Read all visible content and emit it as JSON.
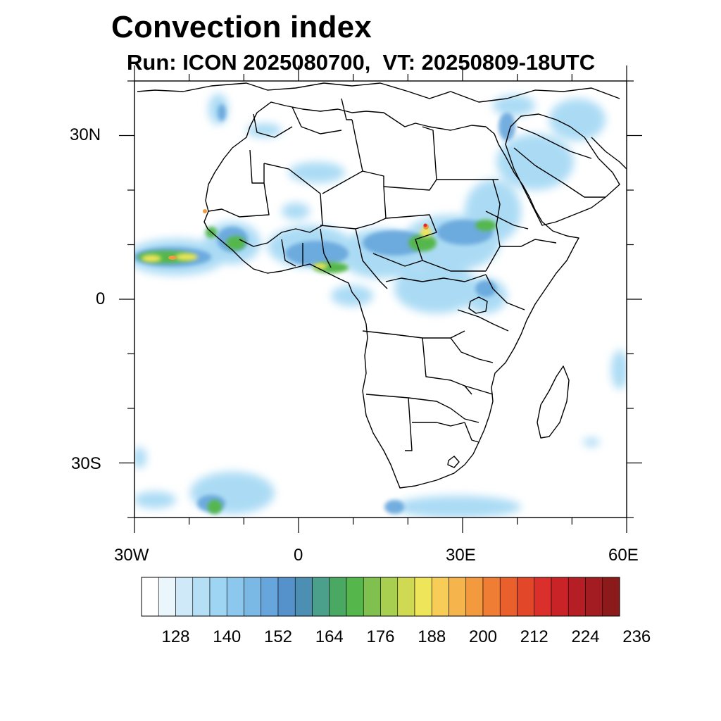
{
  "title": "Convection index",
  "subtitle": "Run: ICON 2025080700,  VT: 20250809-18UTC",
  "axes": {
    "lat_labels": [
      "30N",
      "0",
      "30S"
    ],
    "lon_labels": [
      "30W",
      "0",
      "30E",
      "60E"
    ],
    "lat_values": [
      30,
      0,
      -30
    ],
    "lon_values": [
      -30,
      0,
      30,
      60
    ],
    "lon_range": [
      -30,
      60
    ],
    "lat_range": [
      -40,
      40
    ]
  },
  "colorbar": {
    "labels": [
      "128",
      "140",
      "152",
      "164",
      "176",
      "188",
      "200",
      "212",
      "224",
      "236"
    ],
    "colors": [
      "#ffffff",
      "#eaf5fc",
      "#cfe9f8",
      "#b5dff5",
      "#9dd5f3",
      "#8cc8ee",
      "#7ab8e6",
      "#66a6dc",
      "#5592cc",
      "#4c8fb3",
      "#4aa08a",
      "#49a861",
      "#55b74b",
      "#7fc04e",
      "#a8cf50",
      "#cfda52",
      "#efe55a",
      "#f7cd58",
      "#f6b54c",
      "#f49a3e",
      "#ef7d33",
      "#e9602c",
      "#e3472a",
      "#db2f2b",
      "#c92328",
      "#b51e25",
      "#a31c22",
      "#8c1a1a"
    ]
  },
  "map_colors": {
    "coast": "#000000",
    "convection_low": "#9dd5f3",
    "convection_mid": "#66a6dc",
    "convection_green": "#55b74b",
    "convection_yellow": "#efe55a",
    "convection_orange": "#f49a3e",
    "convection_red": "#db2f2b"
  }
}
